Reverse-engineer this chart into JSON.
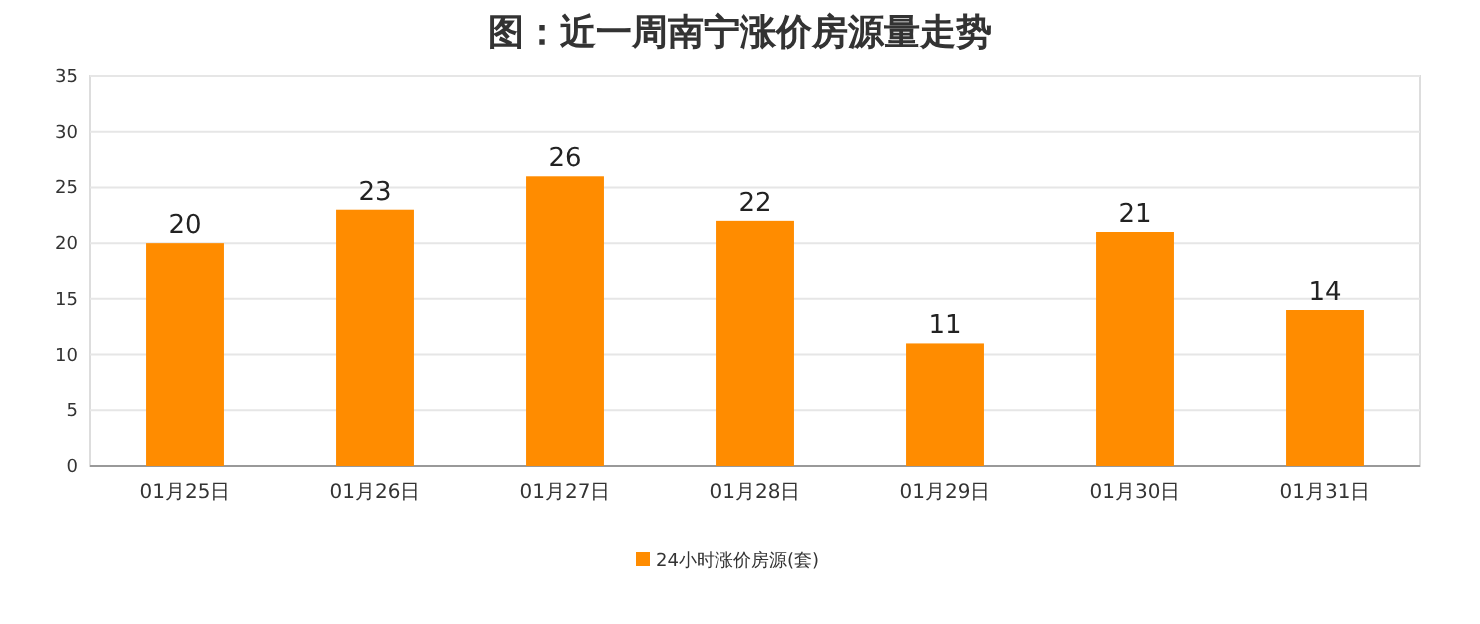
{
  "chart_data": {
    "type": "bar",
    "title": "图：近一周南宁涨价房源量走势",
    "categories": [
      "01月25日",
      "01月26日",
      "01月27日",
      "01月28日",
      "01月29日",
      "01月30日",
      "01月31日"
    ],
    "series": [
      {
        "name": "24小时涨价房源(套)",
        "color": "#ff8c00",
        "values": [
          20,
          23,
          26,
          22,
          11,
          21,
          14
        ]
      }
    ],
    "ylim": [
      0,
      35
    ],
    "yticks": [
      0,
      5,
      10,
      15,
      20,
      25,
      30,
      35
    ],
    "grid": "y",
    "legend": "bottom",
    "data_labels": true
  }
}
